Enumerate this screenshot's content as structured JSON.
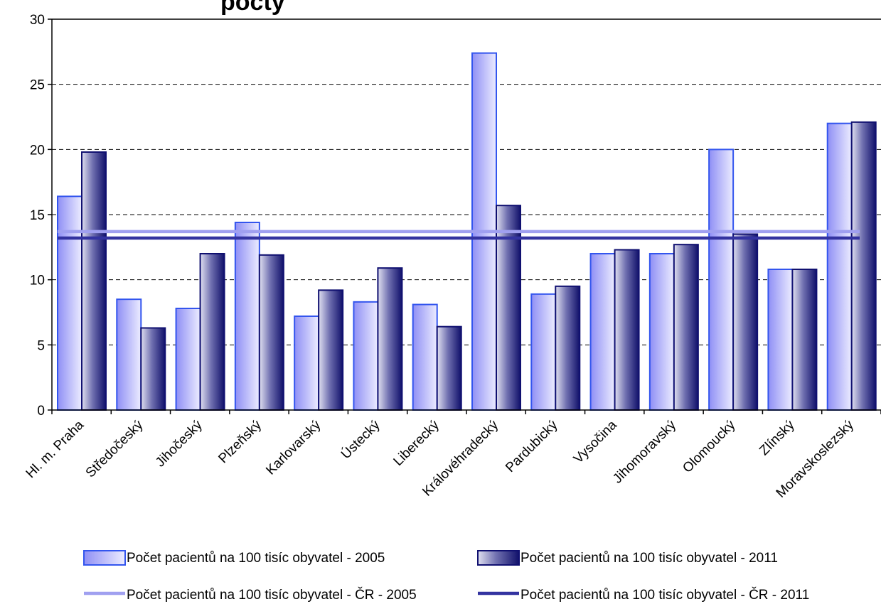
{
  "chart_data": {
    "type": "bar",
    "title": "",
    "xlabel": "",
    "ylabel": "",
    "ylim": [
      0,
      30
    ],
    "yticks": [
      "0",
      "5",
      "10",
      "15",
      "20",
      "25",
      "30"
    ],
    "grid": true,
    "legend_position": "bottom",
    "categories": [
      "Hl. m. Praha",
      "Středočeský",
      "Jihočeský",
      "Plzeňský",
      "Karlovarský",
      "Ústecký",
      "Liberecký",
      "Královéhradecký",
      "Pardubický",
      "Vysočina",
      "Jihomoravský",
      "Olomoucký",
      "Zlínský",
      "Moravskoslezský"
    ],
    "series": [
      {
        "name": "Počet pacientů na 100 tisíc obyvatel - 2005",
        "kind": "bar",
        "color": "#9999ff",
        "values": [
          16.4,
          8.5,
          7.8,
          14.4,
          7.2,
          8.3,
          8.1,
          27.4,
          8.9,
          12.0,
          12.0,
          20.0,
          10.8,
          22.0
        ]
      },
      {
        "name": "Počet pacientů na 100 tisíc obyvatel - 2011",
        "kind": "bar",
        "color": "#1a1a80",
        "values": [
          19.8,
          6.3,
          12.0,
          11.9,
          9.2,
          10.9,
          6.4,
          15.7,
          9.5,
          12.3,
          12.7,
          13.5,
          10.8,
          22.1
        ]
      },
      {
        "name": "Počet pacientů na 100 tisíc obyvatel - ČR - 2005",
        "kind": "line",
        "color": "#a0a0f0",
        "value": 13.7
      },
      {
        "name": "Počet pacientů na 100 tisíc obyvatel - ČR - 2011",
        "kind": "line",
        "color": "#3333a0",
        "value": 13.2
      }
    ]
  }
}
